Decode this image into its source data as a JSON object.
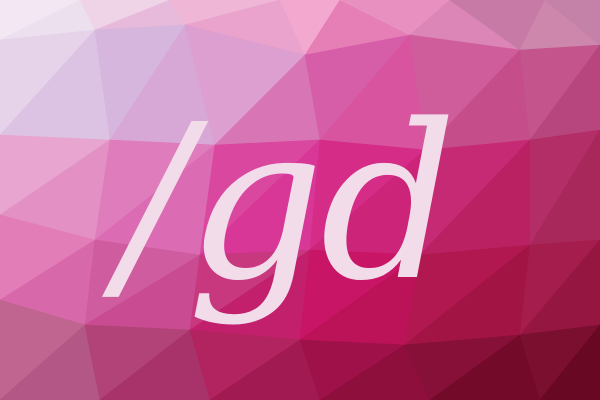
{
  "logo": {
    "text": "/gd",
    "text_color": "#f2dcea"
  },
  "background": {
    "style": "low-poly triangulated mosaic",
    "palette": [
      "#f2e4f2",
      "#dcb9df",
      "#e9a6d2",
      "#d767b2",
      "#d92e8a",
      "#c41c6b",
      "#9b1446",
      "#6e0a22"
    ]
  }
}
